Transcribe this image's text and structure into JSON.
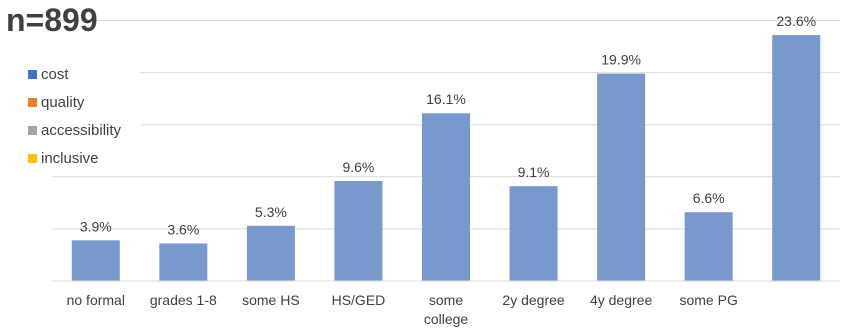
{
  "n_label": "n=899",
  "chart_data": {
    "type": "bar",
    "categories": [
      "no formal",
      "grades 1-8",
      "some HS",
      "HS/GED",
      "some college",
      "2y degree",
      "4y degree",
      "some PG",
      ""
    ],
    "category_lines": [
      [
        "no formal"
      ],
      [
        "grades 1-8"
      ],
      [
        "some HS"
      ],
      [
        "HS/GED"
      ],
      [
        "some",
        "college"
      ],
      [
        "2y degree"
      ],
      [
        "4y degree"
      ],
      [
        "some PG"
      ],
      [
        ""
      ]
    ],
    "series": [
      {
        "name": "cost",
        "values": [
          3.9,
          3.6,
          5.3,
          9.6,
          16.1,
          9.1,
          19.9,
          6.6,
          23.6
        ],
        "color": "#7799CC"
      }
    ],
    "data_labels": [
      "3.9%",
      "3.6%",
      "5.3%",
      "9.6%",
      "16.1%",
      "9.1%",
      "19.9%",
      "6.6%",
      "23.6%"
    ],
    "legend": {
      "placement": "top-left",
      "entries": [
        {
          "name": "cost",
          "color": "#4472C4"
        },
        {
          "name": "quality",
          "color": "#ED7D31"
        },
        {
          "name": "accessibility",
          "color": "#A5A5A5"
        },
        {
          "name": "inclusive",
          "color": "#FFC000"
        }
      ]
    },
    "ylim": [
      0,
      25
    ],
    "grid": true,
    "title": "",
    "xlabel": "",
    "ylabel": ""
  }
}
